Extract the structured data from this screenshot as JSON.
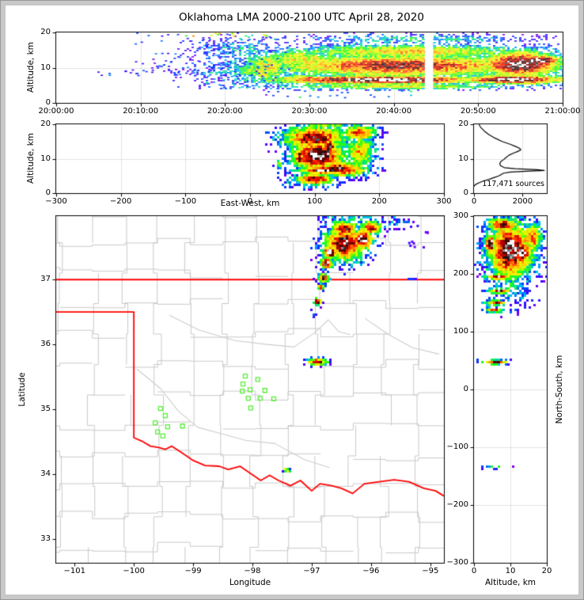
{
  "title": "Oklahoma LMA 2000-2100 UTC April 28, 2020",
  "colors": {
    "window_bg": "#c8c8c8",
    "figure_bg": "#ffffff",
    "spine": "#000000",
    "grid": "#e3e3e3",
    "county_line": "#c9c9c9",
    "river_line": "#cccccc",
    "state_border": "#ff0000",
    "station": "#55ee33",
    "histogram_line": "#000000"
  },
  "colormap_low_to_high": [
    [
      0.0,
      "#8800ee"
    ],
    [
      0.1,
      "#4400ff"
    ],
    [
      0.2,
      "#0044ff"
    ],
    [
      0.28,
      "#00bbff"
    ],
    [
      0.36,
      "#00ee66"
    ],
    [
      0.44,
      "#33ff00"
    ],
    [
      0.52,
      "#ccff00"
    ],
    [
      0.6,
      "#ffee00"
    ],
    [
      0.68,
      "#ffaa00"
    ],
    [
      0.76,
      "#ff2200"
    ],
    [
      0.84,
      "#bb0000"
    ],
    [
      0.9,
      "#550000"
    ],
    [
      0.94,
      "#151515"
    ],
    [
      0.97,
      "#999999"
    ],
    [
      1.0,
      "#ffffff"
    ]
  ],
  "chart_data": [
    {
      "id": "time_height",
      "type": "heatmap",
      "ylabel": "Altitude, km",
      "xrange": [
        0,
        3600
      ],
      "yrange": [
        20,
        0
      ],
      "xticks": [
        0,
        600,
        1200,
        1800,
        2400,
        3000,
        3600
      ],
      "xtick_labels": [
        "20:00:00",
        "20:10:00",
        "20:20:00",
        "20:30:00",
        "20:40:00",
        "20:50:00",
        "21:00:00"
      ],
      "yticks": [
        0,
        10,
        20
      ],
      "ytick_labels": [
        "0",
        "10",
        "20"
      ],
      "xgrid": [
        600,
        1200,
        1800,
        2400,
        3000
      ],
      "ygrid": [
        10
      ],
      "cell": [
        3,
        2
      ],
      "seed": 11,
      "blobs": [
        [
          2300,
          6.5,
          900,
          1.4,
          1.0
        ],
        [
          3250,
          6.6,
          420,
          1.5,
          1.0
        ],
        [
          1800,
          6.8,
          350,
          1.2,
          0.7
        ],
        [
          2450,
          10.5,
          1080,
          3.6,
          0.82
        ],
        [
          2500,
          14.5,
          1000,
          2.3,
          0.6
        ],
        [
          2600,
          18,
          900,
          1.6,
          0.3
        ],
        [
          2400,
          4.6,
          1000,
          0.9,
          0.55
        ],
        [
          3300,
          11,
          330,
          4.2,
          0.96
        ],
        [
          3440,
          12,
          170,
          1.8,
          1.0
        ],
        [
          1750,
          12,
          360,
          4.0,
          0.55
        ],
        [
          1500,
          10,
          180,
          5.0,
          0.6
        ],
        [
          1450,
          9,
          300,
          2.5,
          0.45
        ],
        [
          1200,
          8.6,
          330,
          0.8,
          0.3
        ],
        [
          1300,
          15,
          350,
          3.6,
          0.26
        ]
      ],
      "scatters": [
        [
          280,
          1150,
          7.8,
          9.6,
          30,
          0.1,
          0.25
        ],
        [
          550,
          1250,
          10,
          20,
          45,
          0.08,
          0.25
        ],
        [
          1050,
          1650,
          4,
          19,
          130,
          0.08,
          0.35
        ],
        [
          900,
          1600,
          19,
          20,
          14,
          0.3,
          0.8
        ],
        [
          1500,
          2600,
          1.5,
          4,
          22,
          0.15,
          0.4
        ]
      ],
      "white_gaps": [
        [
          2620,
          2680
        ]
      ]
    },
    {
      "id": "ew_alt",
      "type": "heatmap",
      "xlabel": "East-West, km",
      "ylabel": "Altitude, km",
      "xrange": [
        -300,
        300
      ],
      "yrange": [
        20,
        0
      ],
      "xticks": [
        -300,
        -200,
        -100,
        0,
        100,
        200,
        300
      ],
      "xtick_labels": [
        "−300",
        "−200",
        "−100",
        "0",
        "100",
        "200",
        "300"
      ],
      "yticks": [
        0,
        10,
        20
      ],
      "ytick_labels": [
        "0",
        "10",
        "20"
      ],
      "xgrid": [
        -200,
        -100,
        0,
        100,
        200
      ],
      "ygrid": [
        10
      ],
      "cell": [
        3,
        3
      ],
      "seed": 22,
      "blobs": [
        [
          100,
          16,
          55,
          3.8,
          0.85
        ],
        [
          115,
          19.4,
          50,
          1.0,
          0.5
        ],
        [
          105,
          11,
          45,
          4.8,
          0.97
        ],
        [
          96,
          11.5,
          13,
          2.0,
          1.0
        ],
        [
          123,
          13.5,
          12,
          2.4,
          0.96
        ],
        [
          112,
          6.6,
          40,
          1.3,
          1.0
        ],
        [
          140,
          7,
          45,
          2.4,
          0.86
        ],
        [
          100,
          4,
          35,
          2.0,
          0.8
        ],
        [
          76,
          10.5,
          6,
          2.8,
          0.92
        ],
        [
          170,
          12,
          26,
          5.5,
          0.6
        ],
        [
          168,
          17.5,
          30,
          2.5,
          0.75
        ],
        [
          45,
          8.5,
          4,
          1.4,
          0.55
        ],
        [
          45,
          4.5,
          3,
          2.0,
          0.15
        ],
        [
          63,
          2.8,
          12,
          1.4,
          0.3
        ]
      ],
      "scatters": [],
      "white_gaps": []
    },
    {
      "id": "altitude_histogram",
      "type": "line",
      "annotation": "117,471 sources",
      "total_sources": 117471,
      "xrange": [
        0,
        3000
      ],
      "yrange": [
        20,
        0
      ],
      "xticks": [
        0,
        2000
      ],
      "xtick_labels": [
        "0",
        "2000"
      ],
      "yticks": [
        0,
        10,
        20
      ],
      "ytick_labels": [
        "0",
        "10",
        "20"
      ],
      "xgrid": [
        2000
      ],
      "ygrid": [
        10
      ],
      "profile_alt_km_vs_sources": [
        [
          2.0,
          0
        ],
        [
          2.5,
          60
        ],
        [
          3.0,
          200
        ],
        [
          3.5,
          380
        ],
        [
          4.0,
          620
        ],
        [
          4.5,
          820
        ],
        [
          5.0,
          1020
        ],
        [
          5.4,
          1120
        ],
        [
          5.8,
          1220
        ],
        [
          6.1,
          1500
        ],
        [
          6.4,
          2300
        ],
        [
          6.6,
          2900
        ],
        [
          6.8,
          2600
        ],
        [
          7.1,
          1700
        ],
        [
          7.4,
          1250
        ],
        [
          8.0,
          1090
        ],
        [
          8.6,
          1060
        ],
        [
          9.2,
          1110
        ],
        [
          9.8,
          1230
        ],
        [
          10.4,
          1330
        ],
        [
          11.0,
          1440
        ],
        [
          11.6,
          1620
        ],
        [
          12.1,
          1800
        ],
        [
          12.6,
          1930
        ],
        [
          13.1,
          1860
        ],
        [
          13.6,
          1700
        ],
        [
          14.2,
          1490
        ],
        [
          15.0,
          1160
        ],
        [
          16.0,
          860
        ],
        [
          17.0,
          610
        ],
        [
          18.0,
          430
        ],
        [
          19.0,
          290
        ],
        [
          19.6,
          230
        ],
        [
          20.0,
          210
        ]
      ]
    },
    {
      "id": "plan_view_map",
      "type": "map",
      "xlabel": "Longitude",
      "ylabel": "Latitude",
      "xrange": [
        -101.31,
        -94.77
      ],
      "yrange": [
        37.98,
        32.63
      ],
      "xticks": [
        -101,
        -100,
        -99,
        -98,
        -97,
        -96,
        -95
      ],
      "xtick_labels": [
        "−101",
        "−100",
        "−99",
        "−98",
        "−97",
        "−96",
        "−95"
      ],
      "yticks": [
        37,
        36,
        35,
        34,
        33
      ],
      "ytick_labels": [
        "37",
        "36",
        "35",
        "34",
        "33"
      ],
      "xgrid": [],
      "ygrid": [],
      "cell": [
        3,
        3
      ],
      "seed": 33,
      "county_grid": {
        "lon_start": -101.8,
        "lon_step": 0.55,
        "lon_count": 15,
        "lat_start": 32.4,
        "lat_step": 0.47,
        "lat_count": 14,
        "jitter": 0.11,
        "skip": 0.13,
        "seed": 7
      },
      "rivers": [
        [
          [
            -99.4,
            36.45
          ],
          [
            -98.9,
            36.22
          ],
          [
            -98.3,
            36.06
          ],
          [
            -97.75,
            36.0
          ],
          [
            -97.3,
            35.96
          ],
          [
            -96.95,
            36.18
          ],
          [
            -96.72,
            36.38
          ],
          [
            -96.55,
            36.2
          ],
          [
            -96.35,
            36.15
          ]
        ],
        [
          [
            -99.95,
            35.62
          ],
          [
            -99.55,
            35.32
          ],
          [
            -99.25,
            34.97
          ],
          [
            -98.92,
            34.72
          ],
          [
            -98.52,
            34.62
          ],
          [
            -98.12,
            34.52
          ],
          [
            -97.62,
            34.47
          ],
          [
            -97.12,
            34.22
          ],
          [
            -96.7,
            34.1
          ]
        ],
        [
          [
            -96.1,
            36.4
          ],
          [
            -95.7,
            36.15
          ],
          [
            -95.3,
            35.95
          ],
          [
            -94.85,
            35.85
          ]
        ]
      ],
      "state_border_polylines": [
        [
          [
            -101.31,
            37.0
          ],
          [
            -94.77,
            37.0
          ]
        ],
        [
          [
            -101.31,
            36.5
          ],
          [
            -100.0,
            36.5
          ],
          [
            -100.0,
            34.56
          ],
          [
            -99.87,
            34.51
          ],
          [
            -99.72,
            34.43
          ],
          [
            -99.58,
            34.41
          ],
          [
            -99.47,
            34.38
          ],
          [
            -99.36,
            34.43
          ],
          [
            -99.21,
            34.34
          ],
          [
            -99.0,
            34.21
          ],
          [
            -98.8,
            34.13
          ],
          [
            -98.56,
            34.12
          ],
          [
            -98.41,
            34.07
          ],
          [
            -98.21,
            34.12
          ],
          [
            -98.0,
            33.99
          ],
          [
            -97.86,
            33.9
          ],
          [
            -97.71,
            33.98
          ],
          [
            -97.56,
            33.9
          ],
          [
            -97.36,
            33.82
          ],
          [
            -97.19,
            33.9
          ],
          [
            -97.0,
            33.74
          ],
          [
            -96.86,
            33.85
          ],
          [
            -96.66,
            33.82
          ],
          [
            -96.5,
            33.78
          ],
          [
            -96.31,
            33.7
          ],
          [
            -96.11,
            33.85
          ],
          [
            -95.86,
            33.88
          ],
          [
            -95.61,
            33.91
          ],
          [
            -95.36,
            33.88
          ],
          [
            -95.11,
            33.78
          ],
          [
            -94.91,
            33.74
          ],
          [
            -94.77,
            33.66
          ]
        ]
      ],
      "stations_lon_lat": [
        [
          -98.12,
          35.51
        ],
        [
          -97.91,
          35.46
        ],
        [
          -98.16,
          35.39
        ],
        [
          -98.17,
          35.28
        ],
        [
          -98.04,
          35.3
        ],
        [
          -97.79,
          35.29
        ],
        [
          -98.07,
          35.17
        ],
        [
          -97.87,
          35.17
        ],
        [
          -97.64,
          35.16
        ],
        [
          -98.03,
          35.02
        ],
        [
          -99.55,
          35.01
        ],
        [
          -99.47,
          34.9
        ],
        [
          -99.64,
          34.79
        ],
        [
          -99.43,
          34.73
        ],
        [
          -99.18,
          34.74
        ],
        [
          -99.6,
          34.65
        ],
        [
          -99.51,
          34.59
        ]
      ],
      "blobs": [
        [
          -96.45,
          37.55,
          0.38,
          0.3,
          0.9
        ],
        [
          -96.68,
          37.42,
          0.15,
          0.11,
          1.0
        ],
        [
          -96.15,
          37.62,
          0.22,
          0.18,
          0.96
        ],
        [
          -96.0,
          37.8,
          0.2,
          0.13,
          0.8
        ],
        [
          -96.45,
          37.78,
          0.25,
          0.15,
          0.85
        ],
        [
          -96.75,
          37.25,
          0.12,
          0.09,
          0.98
        ],
        [
          -96.8,
          37.02,
          0.1,
          0.08,
          0.95
        ],
        [
          -96.85,
          36.88,
          0.06,
          0.05,
          0.8
        ],
        [
          -96.9,
          36.66,
          0.08,
          0.06,
          0.92
        ],
        [
          -97.0,
          36.48,
          0.06,
          0.06,
          0.35
        ],
        [
          -96.3,
          37.97,
          0.55,
          0.13,
          0.3
        ],
        [
          -95.6,
          37.88,
          0.28,
          0.12,
          0.22
        ],
        [
          -95.35,
          37.02,
          0.14,
          0.03,
          0.2
        ],
        [
          -96.9,
          35.73,
          0.19,
          0.06,
          0.85
        ],
        [
          -97.42,
          34.06,
          0.07,
          0.045,
          0.6
        ]
      ],
      "scatters": [
        [
          -95.5,
          -94.95,
          37.5,
          37.95,
          10,
          0.02,
          0.12
        ]
      ],
      "white_gaps": []
    },
    {
      "id": "ns_alt",
      "type": "heatmap",
      "xlabel": "Altitude, km",
      "ylabel": "North-South, km",
      "ylabel_side": "right",
      "xrange": [
        0,
        20
      ],
      "yrange": [
        300,
        -300
      ],
      "xticks": [
        0,
        10,
        20
      ],
      "xtick_labels": [
        "0",
        "10",
        "20"
      ],
      "yticks": [
        300,
        200,
        100,
        0,
        -100,
        -200,
        -300
      ],
      "ytick_labels": [
        "300",
        "200",
        "100",
        "0",
        "−100",
        "−200",
        "−300"
      ],
      "xgrid": [
        10
      ],
      "ygrid": [
        -200,
        -100,
        0,
        100,
        200
      ],
      "cell": [
        3,
        3
      ],
      "seed": 44,
      "blobs": [
        [
          10,
          240,
          7,
          55,
          0.92
        ],
        [
          10,
          250,
          4.5,
          26,
          1.0
        ],
        [
          4.5,
          252,
          1.6,
          18,
          1.0
        ],
        [
          13,
          237,
          3.2,
          20,
          0.98
        ],
        [
          8,
          285,
          5,
          13,
          0.82
        ],
        [
          16,
          262,
          3.2,
          30,
          0.7
        ],
        [
          7,
          195,
          4,
          6,
          0.9
        ],
        [
          7,
          170,
          3.5,
          5,
          0.85
        ],
        [
          6,
          150,
          3.2,
          5,
          0.8
        ],
        [
          5.5,
          137,
          3,
          4.5,
          0.75
        ],
        [
          10,
          180,
          6,
          42,
          0.3
        ],
        [
          12,
          160,
          5,
          20,
          0.22
        ],
        [
          6,
          47,
          4,
          4.5,
          0.8
        ],
        [
          6,
          -135,
          4,
          3.5,
          0.45
        ]
      ],
      "scatters": [],
      "white_gaps": []
    }
  ]
}
